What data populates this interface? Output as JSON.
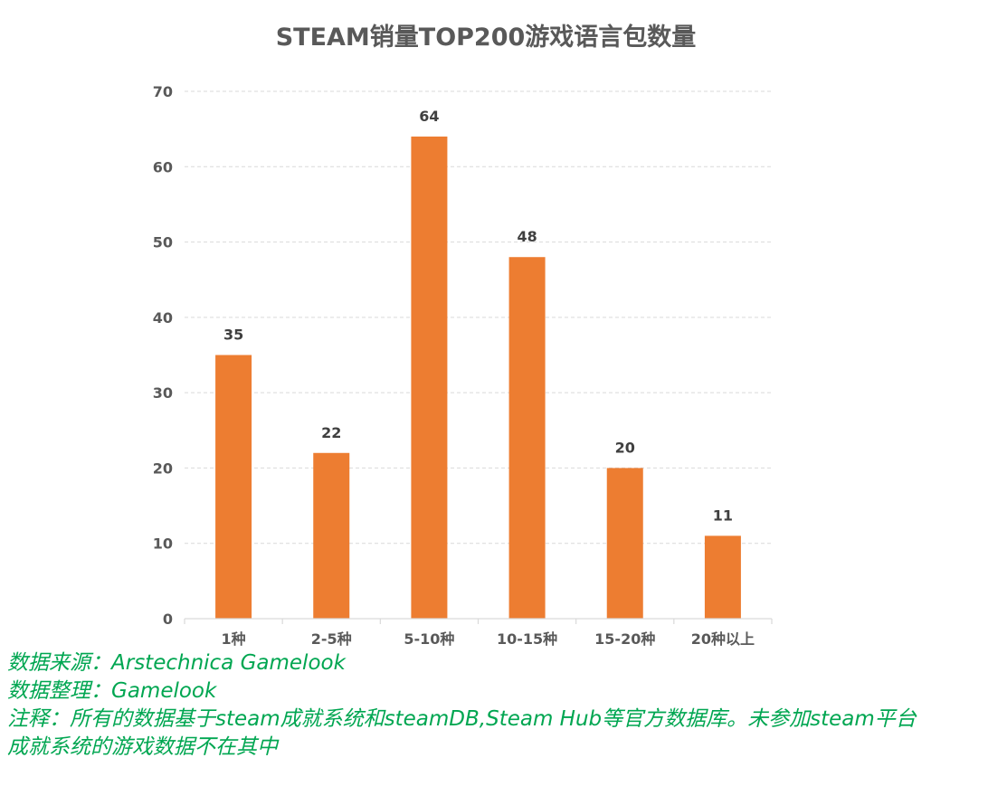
{
  "colors": {
    "bar": "#ed7d31",
    "title": "#595959",
    "axis_text": "#595959",
    "data_label": "#404040",
    "grid": "#d9d9d9",
    "notes": "#00a651"
  },
  "chart_data": {
    "type": "bar",
    "title": "STEAM销量TOP200游戏语言包数量",
    "xlabel": "",
    "ylabel": "",
    "categories": [
      "1种",
      "2-5种",
      "5-10种",
      "10-15种",
      "15-20种",
      "20种以上"
    ],
    "values": [
      35,
      22,
      64,
      48,
      20,
      11
    ],
    "ylim": [
      0,
      70
    ],
    "yticks": [
      0,
      10,
      20,
      30,
      40,
      50,
      60,
      70
    ],
    "grid": true,
    "legend": "none",
    "data_labels": true
  },
  "notes": {
    "source": "数据来源：Arstechnica  Gamelook",
    "compiled": "数据整理：Gamelook",
    "remark_line1": "注释：所有的数据基于steam成就系统和steamDB,Steam Hub等官方数据库。未参加steam平台",
    "remark_line2": "成就系统的游戏数据不在其中"
  }
}
